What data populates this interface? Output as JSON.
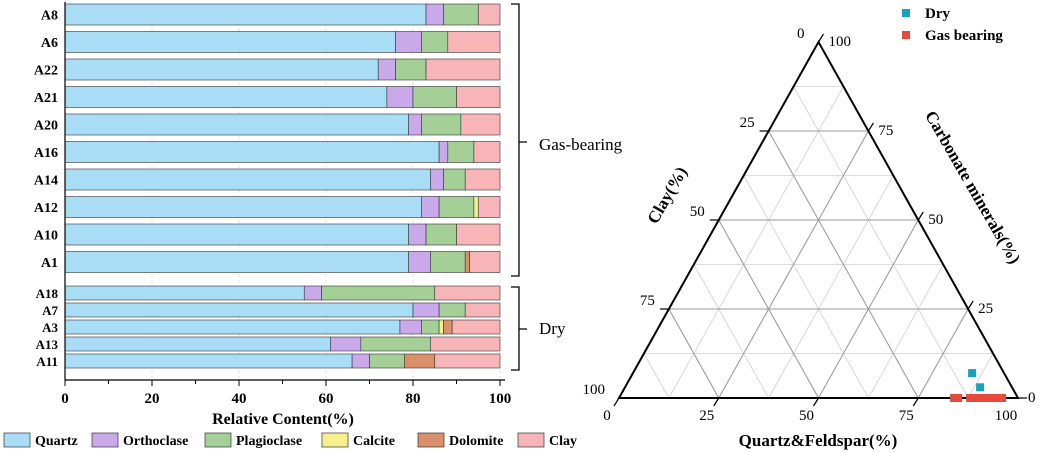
{
  "colors": {
    "Quartz": "#a9dcf5",
    "Orthoclase": "#c9a9ea",
    "Plagioclase": "#a4cf96",
    "Calcite": "#f6f08c",
    "Dolomite": "#d9906b",
    "Clay": "#f7b5b8",
    "Dry": "#1aa0c0",
    "Gas bearing": "#e8493c"
  },
  "chart_data": [
    {
      "type": "bar",
      "orientation": "horizontal",
      "stacked": true,
      "xlabel": "Relative Content(%)",
      "xlim": [
        0,
        100
      ],
      "xticks": [
        "0",
        "20",
        "40",
        "60",
        "80",
        "100"
      ],
      "groups": [
        {
          "label": "Gas-bearing",
          "samples": [
            "A8",
            "A6",
            "A22",
            "A21",
            "A20",
            "A16",
            "A14",
            "A12",
            "A10",
            "A1"
          ]
        },
        {
          "label": "Dry",
          "samples": [
            "A18",
            "A7",
            "A3",
            "A13",
            "A11"
          ]
        }
      ],
      "categories": [
        "A8",
        "A6",
        "A22",
        "A21",
        "A20",
        "A16",
        "A14",
        "A12",
        "A10",
        "A1",
        "A18",
        "A7",
        "A3",
        "A13",
        "A11"
      ],
      "series": [
        {
          "name": "Quartz",
          "values": [
            83,
            76,
            72,
            74,
            79,
            86,
            84,
            82,
            79,
            79,
            55,
            80,
            77,
            61,
            66
          ]
        },
        {
          "name": "Orthoclase",
          "values": [
            4,
            6,
            4,
            6,
            3,
            2,
            3,
            4,
            4,
            5,
            4,
            6,
            5,
            7,
            4
          ]
        },
        {
          "name": "Plagioclase",
          "values": [
            8,
            6,
            7,
            10,
            9,
            6,
            5,
            8,
            7,
            8,
            26,
            6,
            4,
            16,
            8
          ]
        },
        {
          "name": "Calcite",
          "values": [
            0,
            0,
            0,
            0,
            0,
            0,
            0,
            1,
            0,
            0,
            0,
            0,
            1,
            0,
            0
          ]
        },
        {
          "name": "Dolomite",
          "values": [
            0,
            0,
            0,
            0,
            0,
            0,
            0,
            0,
            0,
            1,
            0,
            0,
            2,
            0,
            7
          ]
        },
        {
          "name": "Clay",
          "values": [
            5,
            12,
            17,
            10,
            9,
            6,
            8,
            5,
            10,
            7,
            15,
            8,
            11,
            16,
            15
          ]
        }
      ],
      "legend": {
        "placement": "bottom",
        "entries": [
          "Quartz",
          "Orthoclase",
          "Plagioclase",
          "Calcite",
          "Dolomite",
          "Clay"
        ]
      }
    },
    {
      "type": "scatter",
      "subtype": "ternary",
      "axes": {
        "bottom": "Quartz&Feldspar(%)",
        "left": "Clay(%)",
        "right": "Carbonate minerals(%)"
      },
      "bottom_ticks": [
        "0",
        "25",
        "50",
        "75",
        "100"
      ],
      "left_ticks": [
        "0",
        "25",
        "50",
        "75",
        "100"
      ],
      "right_ticks": [
        "0",
        "25",
        "50",
        "75",
        "100"
      ],
      "grid": true,
      "legend": {
        "placement": "top-right",
        "entries": [
          "Dry",
          "Gas bearing"
        ]
      },
      "series": [
        {
          "name": "Dry",
          "points": [
            {
              "qf": 85,
              "clay": 8,
              "carb": 7
            },
            {
              "qf": 89,
              "clay": 8,
              "carb": 3
            },
            {
              "qf": 84,
              "clay": 16,
              "carb": 0
            },
            {
              "qf": 85,
              "clay": 15,
              "carb": 0
            },
            {
              "qf": 92,
              "clay": 8,
              "carb": 0
            }
          ]
        },
        {
          "name": "Gas bearing",
          "points": [
            {
              "qf": 84,
              "clay": 16,
              "carb": 0
            },
            {
              "qf": 85,
              "clay": 15,
              "carb": 0
            },
            {
              "qf": 88,
              "clay": 12,
              "carb": 0
            },
            {
              "qf": 89,
              "clay": 11,
              "carb": 0
            },
            {
              "qf": 90,
              "clay": 10,
              "carb": 0
            },
            {
              "qf": 91,
              "clay": 9,
              "carb": 0
            },
            {
              "qf": 92,
              "clay": 8,
              "carb": 0
            },
            {
              "qf": 93,
              "clay": 7,
              "carb": 0
            },
            {
              "qf": 94,
              "clay": 6,
              "carb": 0
            },
            {
              "qf": 95,
              "clay": 5,
              "carb": 0
            },
            {
              "qf": 96,
              "clay": 4,
              "carb": 0
            }
          ]
        }
      ]
    }
  ]
}
